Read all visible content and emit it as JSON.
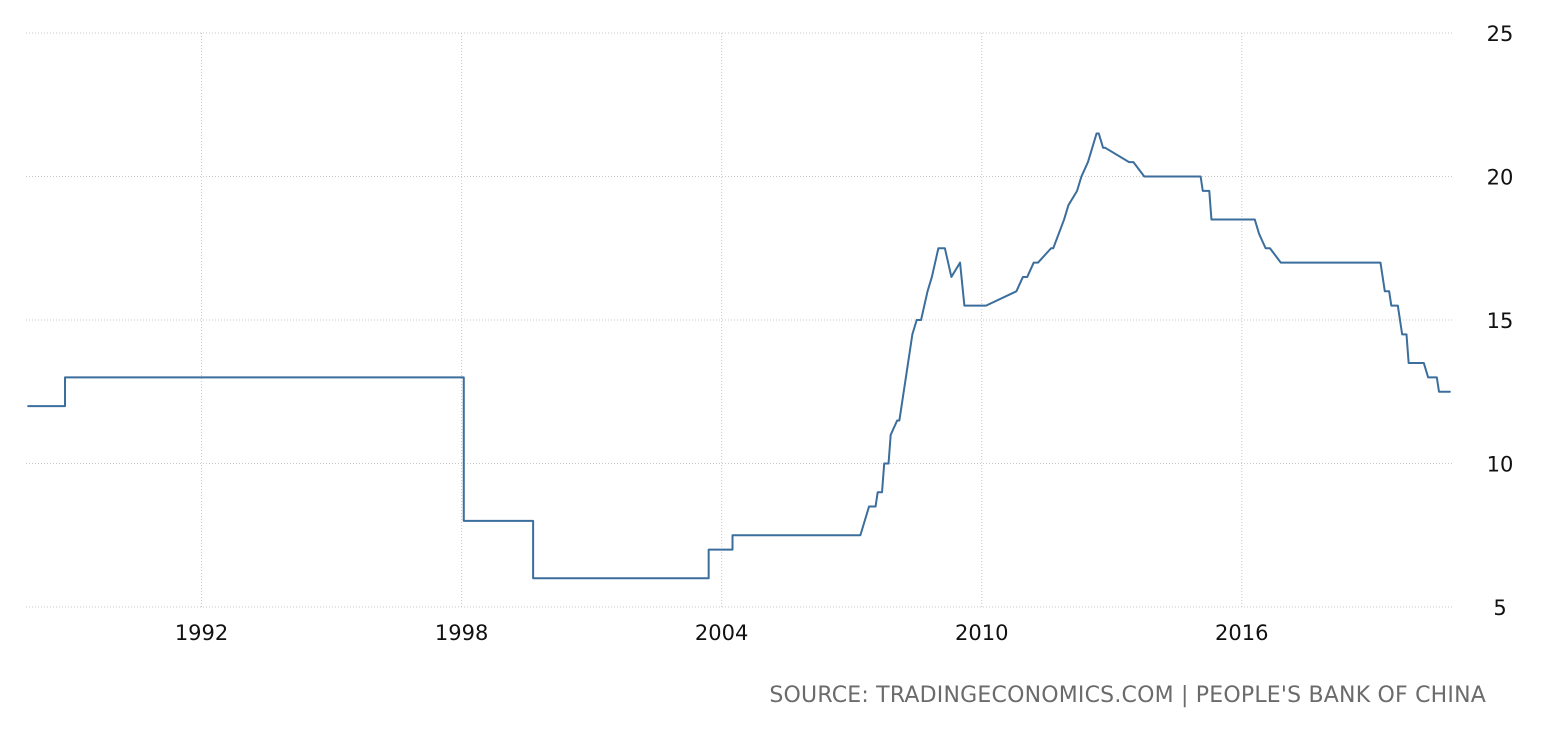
{
  "chart_data": {
    "type": "line",
    "title": "",
    "xlabel": "",
    "ylabel": "",
    "ylim": [
      5,
      25
    ],
    "xlim": [
      1987.95,
      2020.85
    ],
    "yticks": [
      5,
      10,
      15,
      20,
      25
    ],
    "xticks": [
      1992,
      1998,
      2004,
      2010,
      2016
    ],
    "grid": "dotted, both axes",
    "y_axis_side": "right",
    "line_color": "#3b6e9c",
    "series": [
      {
        "x": [
          1988.0,
          1988.85,
          1988.85,
          1989.0,
          1989.0,
          1998.05,
          1998.05,
          1998.2,
          1998.2,
          1998.25,
          1998.25,
          1999.65,
          1999.65,
          1999.85,
          1999.85,
          2003.7,
          2003.7,
          2003.9,
          2003.9,
          2004.25,
          2004.25,
          2007.2,
          2007.4,
          2007.55,
          2007.6,
          2007.7,
          2007.75,
          2007.85,
          2007.9,
          2008.05,
          2008.1,
          2008.2,
          2008.3,
          2008.4,
          2008.5,
          2008.6,
          2008.75,
          2008.85,
          2009.0,
          2009.15,
          2009.3,
          2009.5,
          2009.6,
          2009.75,
          2009.85,
          2010.0,
          2010.05,
          2010.1,
          2010.8,
          2010.95,
          2011.05,
          2011.2,
          2011.3,
          2011.6,
          2011.65,
          2011.9,
          2012.0,
          2012.2,
          2012.3,
          2012.45,
          2012.55,
          2012.65,
          2012.7,
          2012.8,
          2012.85,
          2013.4,
          2013.5,
          2013.75,
          2013.85,
          2015.05,
          2015.1,
          2015.25,
          2015.3,
          2016.3,
          2016.4,
          2016.55,
          2016.65,
          2016.9,
          2016.95,
          2017.25,
          2017.35,
          2019.2,
          2019.3,
          2019.4,
          2019.45,
          2019.6,
          2019.7,
          2019.8,
          2019.85,
          2020.0,
          2020.1,
          2020.2,
          2020.3,
          2020.5,
          2020.55,
          2020.8
        ],
        "y": [
          12.0,
          12.0,
          13.0,
          13.0,
          13.0,
          13.0,
          8.0,
          8.0,
          8.0,
          8.0,
          8.0,
          8.0,
          6.0,
          6.0,
          6.0,
          6.0,
          7.0,
          7.0,
          7.0,
          7.0,
          7.5,
          7.5,
          8.5,
          8.5,
          9.0,
          9.0,
          10.0,
          10.0,
          11.0,
          11.5,
          11.5,
          12.5,
          13.5,
          14.5,
          15.0,
          15.0,
          16.0,
          16.5,
          17.5,
          17.5,
          16.5,
          17.0,
          15.5,
          15.5,
          15.5,
          15.5,
          15.5,
          15.5,
          16.0,
          16.5,
          16.5,
          17.0,
          17.0,
          17.5,
          17.5,
          18.5,
          19.0,
          19.5,
          20.0,
          20.5,
          21.0,
          21.5,
          21.5,
          21.0,
          21.0,
          20.5,
          20.5,
          20.0,
          20.0,
          20.0,
          19.5,
          19.5,
          18.5,
          18.5,
          18.0,
          17.5,
          17.5,
          17.0,
          17.0,
          17.0,
          17.0,
          17.0,
          16.0,
          16.0,
          15.5,
          15.5,
          14.5,
          14.5,
          13.5,
          13.5,
          13.5,
          13.5,
          13.0,
          13.0,
          12.5,
          12.5
        ]
      }
    ],
    "source": "SOURCE: TRADINGECONOMICS.COM | PEOPLE'S BANK OF CHINA"
  }
}
